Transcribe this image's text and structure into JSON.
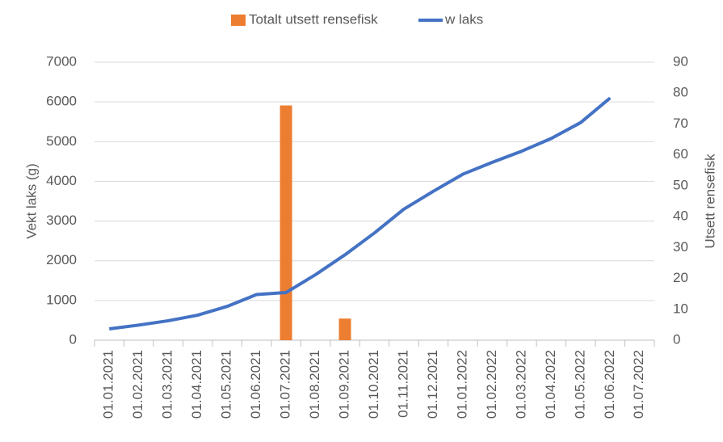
{
  "chart_data": {
    "type": "bar-line",
    "ylabel": "Vekt laks (g)",
    "y2label": "Utsett rensefisk",
    "ylim": [
      0,
      7000
    ],
    "yticks": [
      0,
      1000,
      2000,
      3000,
      4000,
      5000,
      6000,
      7000
    ],
    "y2lim": [
      0,
      90
    ],
    "y2ticks": [
      0,
      10,
      20,
      30,
      40,
      50,
      60,
      70,
      80,
      90
    ],
    "xticks": [
      "01.01.2021",
      "01.02.2021",
      "01.03.2021",
      "01.04.2021",
      "01.05.2021",
      "01.06.2021",
      "01.07.2021",
      "01.08.2021",
      "01.09.2021",
      "01.10.2021",
      "01.11.2021",
      "01.12.2021",
      "01.01.2022",
      "01.02.2022",
      "01.03.2022",
      "01.04.2022",
      "01.05.2022",
      "01.06.2022",
      "01.07.2022"
    ],
    "grid": true,
    "legend": "top",
    "series": [
      {
        "name": "Totalt utsett rensefisk",
        "type": "bar",
        "axis": "y2",
        "color": "#ed7d31",
        "x": [
          "01.07.2021",
          "01.09.2021"
        ],
        "values": [
          76,
          7
        ]
      },
      {
        "name": "w laks",
        "type": "line",
        "axis": "y",
        "color": "#4472c4",
        "x": [
          "01.01.2021",
          "01.02.2021",
          "01.03.2021",
          "01.04.2021",
          "01.05.2021",
          "01.06.2021",
          "01.07.2021",
          "01.08.2021",
          "01.09.2021",
          "01.10.2021",
          "01.11.2021",
          "01.12.2021",
          "01.01.2022",
          "01.02.2022",
          "01.03.2022",
          "01.04.2022",
          "01.05.2022",
          "01.06.2022"
        ],
        "values": [
          285,
          380,
          490,
          630,
          850,
          1150,
          1200,
          1650,
          2150,
          2700,
          3300,
          3750,
          4180,
          4480,
          4760,
          5080,
          5480,
          6100
        ]
      }
    ]
  }
}
